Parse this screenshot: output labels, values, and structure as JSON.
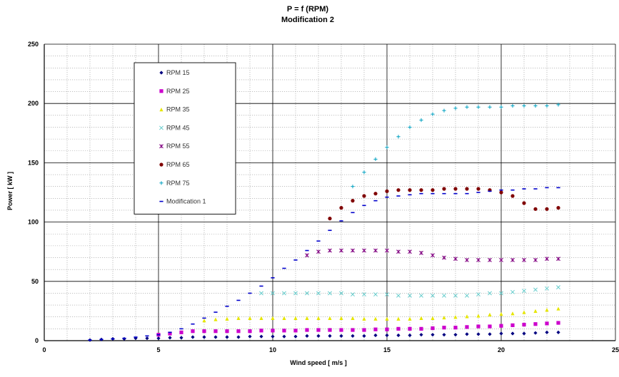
{
  "chart_data": {
    "type": "scatter",
    "title": "P = f (RPM)",
    "subtitle": "Modification 2",
    "xlabel": "Wind speed [ m/s ]",
    "ylabel": "Power [ kW ]",
    "xlim": [
      0,
      25
    ],
    "ylim": [
      0,
      250
    ],
    "x_ticks": [
      0,
      5,
      10,
      15,
      20,
      25
    ],
    "y_ticks": [
      0,
      50,
      100,
      150,
      200,
      250
    ],
    "grid": true,
    "legend_position": "top-left",
    "series": [
      {
        "name": "RPM 15",
        "color": "#000080",
        "marker": "diamond",
        "x": [
          2.0,
          2.5,
          3.0,
          3.5,
          4.0,
          4.5,
          5.0,
          5.5,
          6.0,
          6.5,
          7.0,
          7.5,
          8.0,
          8.5,
          9.0,
          9.5,
          10.0,
          10.5,
          11.0,
          11.5,
          12.0,
          12.5,
          13.0,
          13.5,
          14.0,
          14.5,
          15.0,
          15.5,
          16.0,
          16.5,
          17.0,
          17.5,
          18.0,
          18.5,
          19.0,
          19.5,
          20.0,
          20.5,
          21.0,
          21.5,
          22.0,
          22.5
        ],
        "y": [
          0.5,
          1,
          1.5,
          1.5,
          2,
          2,
          2,
          2.5,
          2.5,
          3,
          3,
          3,
          3,
          3,
          3.5,
          3.5,
          3.5,
          3.5,
          3.5,
          4,
          4,
          4,
          4,
          4,
          4,
          4.5,
          4.5,
          4.5,
          4.5,
          5,
          5,
          5,
          5,
          5.5,
          5.5,
          5.5,
          6,
          6,
          6,
          6.5,
          7,
          7
        ]
      },
      {
        "name": "RPM 25",
        "color": "#cc00cc",
        "marker": "square",
        "x": [
          5.0,
          5.5,
          6.0,
          6.5,
          7.0,
          7.5,
          8.0,
          8.5,
          9.0,
          9.5,
          10.0,
          10.5,
          11.0,
          11.5,
          12.0,
          12.5,
          13.0,
          13.5,
          14.0,
          14.5,
          15.0,
          15.5,
          16.0,
          16.5,
          17.0,
          17.5,
          18.0,
          18.5,
          19.0,
          19.5,
          20.0,
          20.5,
          21.0,
          21.5,
          22.0,
          22.5
        ],
        "y": [
          5,
          6,
          7,
          8,
          8,
          8,
          8,
          8,
          8,
          8.5,
          8.5,
          8.5,
          8.5,
          9,
          9,
          9,
          9,
          9,
          9,
          9.5,
          9.5,
          10,
          10,
          10,
          10.5,
          11,
          11,
          11.5,
          12,
          12,
          12.5,
          13,
          13.5,
          14,
          14.5,
          15
        ]
      },
      {
        "name": "RPM 35",
        "color": "#e6e600",
        "marker": "triangle",
        "x": [
          7.0,
          7.5,
          8.0,
          8.5,
          9.0,
          9.5,
          10.0,
          10.5,
          11.0,
          11.5,
          12.0,
          12.5,
          13.0,
          13.5,
          14.0,
          14.5,
          15.0,
          15.5,
          16.0,
          16.5,
          17.0,
          17.5,
          18.0,
          18.5,
          19.0,
          19.5,
          20.0,
          20.5,
          21.0,
          21.5,
          22.0,
          22.5
        ],
        "y": [
          17,
          18,
          18.5,
          19,
          19,
          19,
          19,
          19,
          19,
          19,
          19,
          19,
          19,
          19,
          18.5,
          18.5,
          18.5,
          18.5,
          18.5,
          19,
          19,
          19.5,
          20,
          20.5,
          21,
          22,
          22.5,
          23,
          24,
          25,
          26,
          27
        ]
      },
      {
        "name": "RPM 45",
        "color": "#66cccc",
        "marker": "cross",
        "x": [
          9.5,
          10.0,
          10.5,
          11.0,
          11.5,
          12.0,
          12.5,
          13.0,
          13.5,
          14.0,
          14.5,
          15.0,
          15.5,
          16.0,
          16.5,
          17.0,
          17.5,
          18.0,
          18.5,
          19.0,
          19.5,
          20.0,
          20.5,
          21.0,
          21.5,
          22.0,
          22.5
        ],
        "y": [
          40,
          40,
          40,
          40,
          40,
          40,
          40,
          40,
          39,
          39,
          39,
          39,
          38,
          38,
          38,
          38,
          38,
          38,
          38,
          39,
          40,
          40,
          41,
          42,
          43,
          44,
          45
        ]
      },
      {
        "name": "RPM 55",
        "color": "#800080",
        "marker": "star",
        "x": [
          11.5,
          12.0,
          12.5,
          13.0,
          13.5,
          14.0,
          14.5,
          15.0,
          15.5,
          16.0,
          16.5,
          17.0,
          17.5,
          18.0,
          18.5,
          19.0,
          19.5,
          20.0,
          20.5,
          21.0,
          21.5,
          22.0,
          22.5
        ],
        "y": [
          72,
          75,
          76,
          76,
          76,
          76,
          76,
          76,
          75,
          75,
          74,
          72,
          70,
          69,
          68,
          68,
          68,
          68,
          68,
          68,
          68,
          69,
          69
        ]
      },
      {
        "name": "RPM 65",
        "color": "#800000",
        "marker": "circle",
        "x": [
          12.5,
          13.0,
          13.5,
          14.0,
          14.5,
          15.0,
          15.5,
          16.0,
          16.5,
          17.0,
          17.5,
          18.0,
          18.5,
          19.0,
          19.5,
          20.0,
          20.5,
          21.0,
          21.5,
          22.0,
          22.5
        ],
        "y": [
          103,
          112,
          118,
          122,
          124,
          126,
          127,
          127,
          127,
          127,
          128,
          128,
          128,
          128,
          127,
          125,
          122,
          116,
          111,
          111,
          112
        ]
      },
      {
        "name": "RPM 75",
        "color": "#00a0c0",
        "marker": "plus",
        "x": [
          13.5,
          14.0,
          14.5,
          15.0,
          15.5,
          16.0,
          16.5,
          17.0,
          17.5,
          18.0,
          18.5,
          19.0,
          19.5,
          20.0,
          20.5,
          21.0,
          21.5,
          22.0,
          22.5
        ],
        "y": [
          130,
          142,
          153,
          163,
          172,
          180,
          186,
          191,
          194,
          196,
          197,
          197,
          197,
          197,
          198,
          198,
          198,
          198,
          199
        ]
      },
      {
        "name": "Modification 1",
        "color": "#0000cc",
        "marker": "dash",
        "x": [
          2.0,
          2.5,
          3.0,
          3.5,
          4.0,
          4.5,
          5.0,
          5.5,
          6.0,
          6.5,
          7.0,
          7.5,
          8.0,
          8.5,
          9.0,
          9.5,
          10.0,
          10.5,
          11.0,
          11.5,
          12.0,
          12.5,
          13.0,
          13.5,
          14.0,
          14.5,
          15.0,
          15.5,
          16.0,
          16.5,
          17.0,
          17.5,
          18.0,
          18.5,
          19.0,
          19.5,
          20.0,
          20.5,
          21.0,
          21.5,
          22.0,
          22.5
        ],
        "y": [
          0.5,
          1,
          1.5,
          2,
          3,
          4,
          5,
          7,
          10,
          14,
          19,
          24,
          29,
          34,
          40,
          46,
          53,
          61,
          68,
          76,
          84,
          93,
          101,
          108,
          114,
          118,
          121,
          122,
          123,
          124,
          124,
          124,
          124,
          124,
          125,
          126,
          127,
          127,
          128,
          128,
          129,
          129
        ]
      }
    ]
  }
}
